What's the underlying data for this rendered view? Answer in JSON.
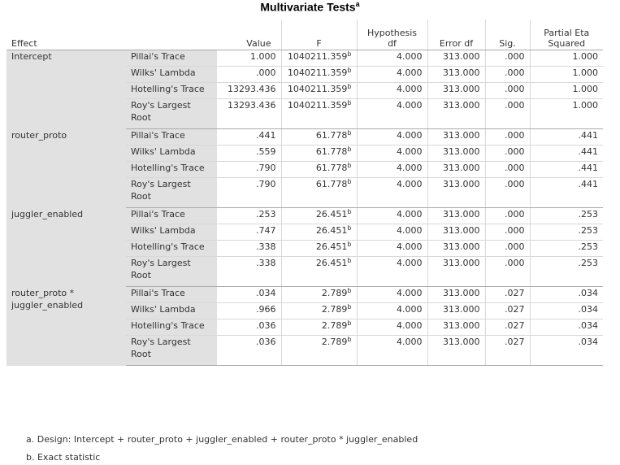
{
  "title": "Multivariate Tests",
  "title_sup": "a",
  "headers": {
    "effect": "Effect",
    "value": "Value",
    "f": "F",
    "hypothesis_df": "Hypothesis df",
    "error_df": "Error df",
    "sig": "Sig.",
    "partial_eta_squared": "Partial Eta Squared"
  },
  "f_sup": "b",
  "groups": [
    {
      "effect": "Intercept",
      "rows": [
        {
          "test": "Pillai's Trace",
          "value": "1.000",
          "f": "1040211.359",
          "hyp_df": "4.000",
          "err_df": "313.000",
          "sig": ".000",
          "eta": "1.000"
        },
        {
          "test": "Wilks' Lambda",
          "value": ".000",
          "f": "1040211.359",
          "hyp_df": "4.000",
          "err_df": "313.000",
          "sig": ".000",
          "eta": "1.000"
        },
        {
          "test": "Hotelling's Trace",
          "value": "13293.436",
          "f": "1040211.359",
          "hyp_df": "4.000",
          "err_df": "313.000",
          "sig": ".000",
          "eta": "1.000"
        },
        {
          "test": "Roy's Largest Root",
          "value": "13293.436",
          "f": "1040211.359",
          "hyp_df": "4.000",
          "err_df": "313.000",
          "sig": ".000",
          "eta": "1.000"
        }
      ]
    },
    {
      "effect": "router_proto",
      "rows": [
        {
          "test": "Pillai's Trace",
          "value": ".441",
          "f": "61.778",
          "hyp_df": "4.000",
          "err_df": "313.000",
          "sig": ".000",
          "eta": ".441"
        },
        {
          "test": "Wilks' Lambda",
          "value": ".559",
          "f": "61.778",
          "hyp_df": "4.000",
          "err_df": "313.000",
          "sig": ".000",
          "eta": ".441"
        },
        {
          "test": "Hotelling's Trace",
          "value": ".790",
          "f": "61.778",
          "hyp_df": "4.000",
          "err_df": "313.000",
          "sig": ".000",
          "eta": ".441"
        },
        {
          "test": "Roy's Largest Root",
          "value": ".790",
          "f": "61.778",
          "hyp_df": "4.000",
          "err_df": "313.000",
          "sig": ".000",
          "eta": ".441"
        }
      ]
    },
    {
      "effect": "juggler_enabled",
      "rows": [
        {
          "test": "Pillai's Trace",
          "value": ".253",
          "f": "26.451",
          "hyp_df": "4.000",
          "err_df": "313.000",
          "sig": ".000",
          "eta": ".253"
        },
        {
          "test": "Wilks' Lambda",
          "value": ".747",
          "f": "26.451",
          "hyp_df": "4.000",
          "err_df": "313.000",
          "sig": ".000",
          "eta": ".253"
        },
        {
          "test": "Hotelling's Trace",
          "value": ".338",
          "f": "26.451",
          "hyp_df": "4.000",
          "err_df": "313.000",
          "sig": ".000",
          "eta": ".253"
        },
        {
          "test": "Roy's Largest Root",
          "value": ".338",
          "f": "26.451",
          "hyp_df": "4.000",
          "err_df": "313.000",
          "sig": ".000",
          "eta": ".253"
        }
      ]
    },
    {
      "effect": "router_proto * juggler_enabled",
      "rows": [
        {
          "test": "Pillai's Trace",
          "value": ".034",
          "f": "2.789",
          "hyp_df": "4.000",
          "err_df": "313.000",
          "sig": ".027",
          "eta": ".034"
        },
        {
          "test": "Wilks' Lambda",
          "value": ".966",
          "f": "2.789",
          "hyp_df": "4.000",
          "err_df": "313.000",
          "sig": ".027",
          "eta": ".034"
        },
        {
          "test": "Hotelling's Trace",
          "value": ".036",
          "f": "2.789",
          "hyp_df": "4.000",
          "err_df": "313.000",
          "sig": ".027",
          "eta": ".034"
        },
        {
          "test": "Roy's Largest Root",
          "value": ".036",
          "f": "2.789",
          "hyp_df": "4.000",
          "err_df": "313.000",
          "sig": ".027",
          "eta": ".034"
        }
      ]
    }
  ],
  "footnotes": [
    "a. Design: Intercept + router_proto + juggler_enabled + router_proto * juggler_enabled",
    "b. Exact statistic"
  ]
}
